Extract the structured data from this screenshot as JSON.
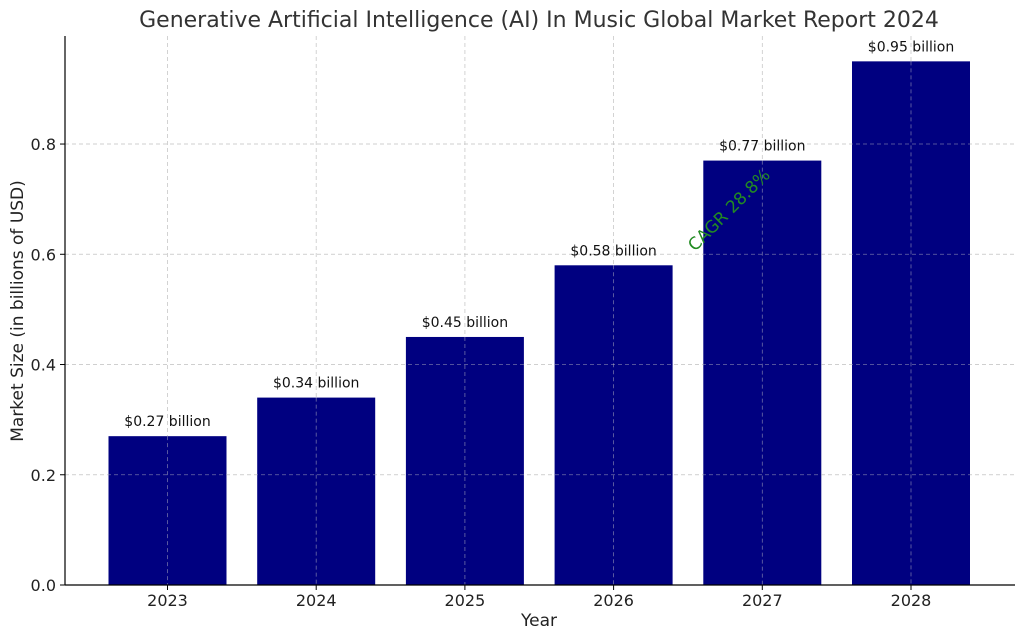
{
  "chart_data": {
    "type": "bar",
    "title": "Generative Artificial Intelligence (AI) In Music Global Market Report 2024",
    "xlabel": "Year",
    "ylabel": "Market Size (in billions of USD)",
    "categories": [
      "2023",
      "2024",
      "2025",
      "2026",
      "2027",
      "2028"
    ],
    "values": [
      0.27,
      0.34,
      0.45,
      0.58,
      0.77,
      0.95
    ],
    "data_labels": [
      "$0.27 billion",
      "$0.34 billion",
      "$0.45 billion",
      "$0.58 billion",
      "$0.77 billion",
      "$0.95 billion"
    ],
    "yticks": [
      "0.0",
      "0.2",
      "0.4",
      "0.6",
      "0.8"
    ],
    "ylim": [
      0,
      1.0
    ],
    "grid": true,
    "bar_color": "#000080",
    "annotation": {
      "text": "CAGR 28.8%",
      "color": "#228B22"
    }
  }
}
